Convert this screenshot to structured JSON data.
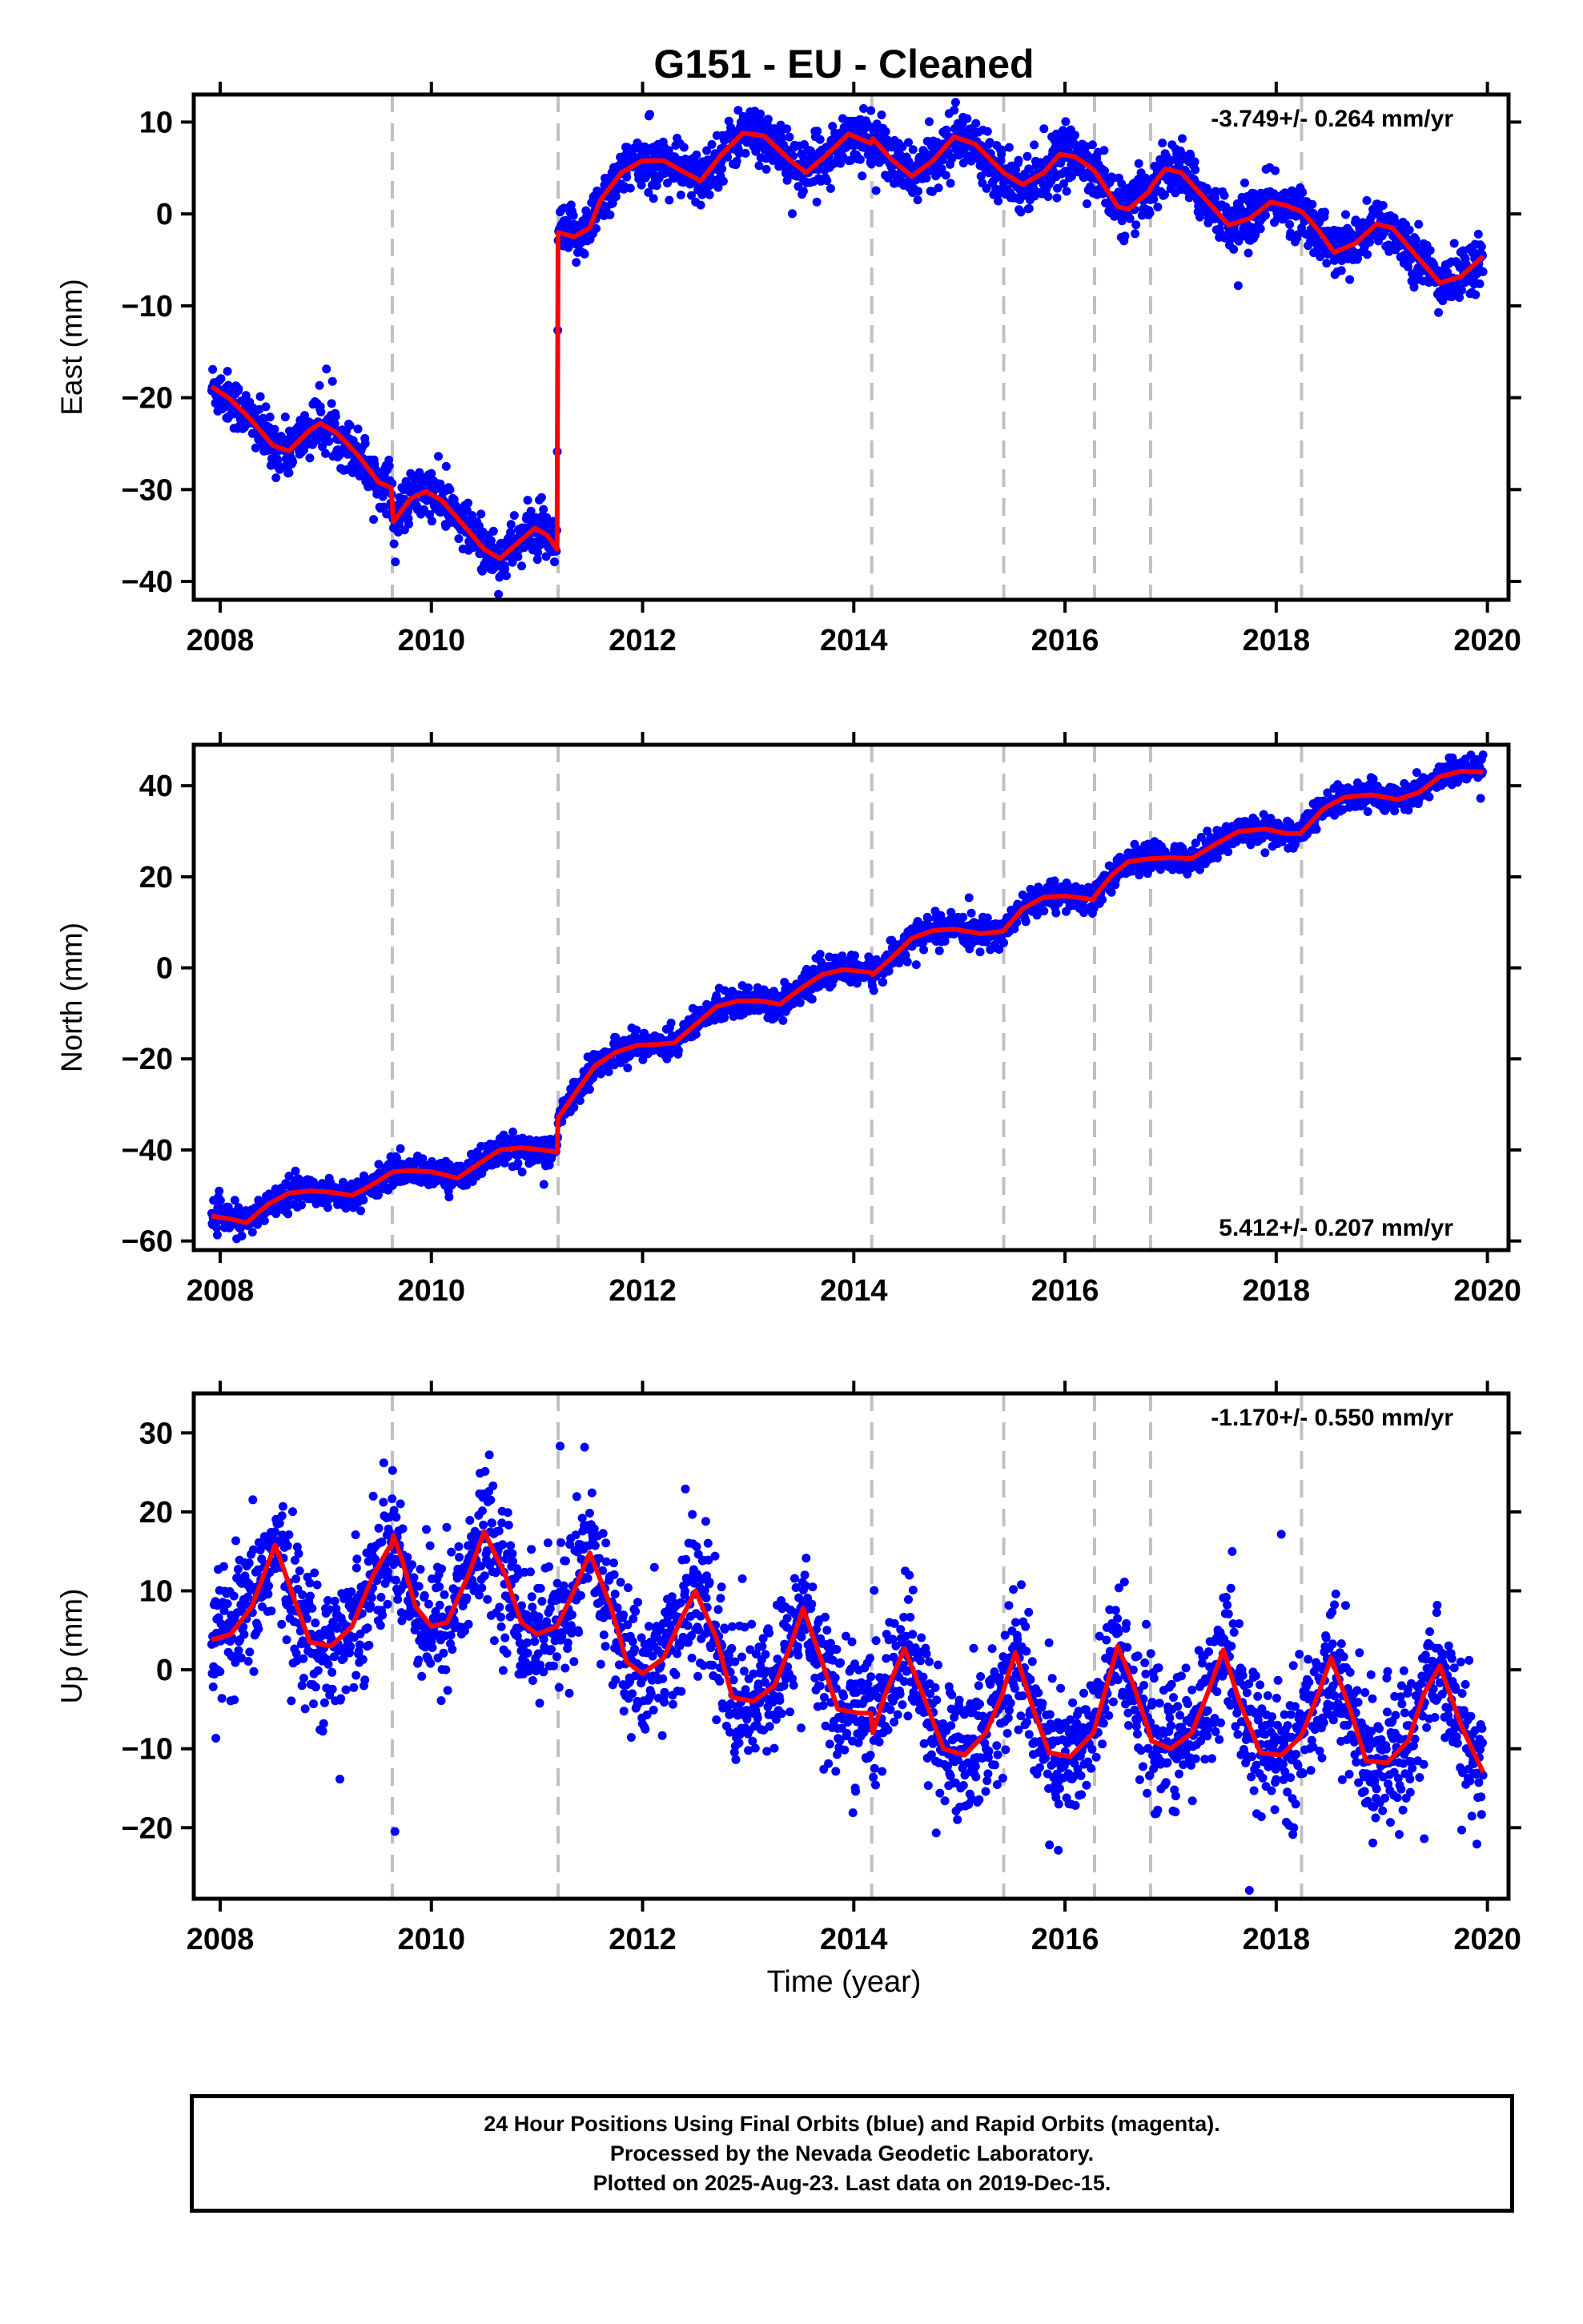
{
  "colors": {
    "observations": "#0000ff",
    "model": "#ff0000",
    "event_lines": "#c0c0c0",
    "frame": "#000000"
  },
  "chart_data": [
    {
      "type": "scatter",
      "id": "east",
      "title": "G151  - EU - Cleaned",
      "xlabel": "",
      "ylabel": "East (mm)",
      "xlim": [
        2007.75,
        2020.2
      ],
      "ylim": [
        -42,
        13
      ],
      "xticks": [
        2008,
        2010,
        2012,
        2014,
        2016,
        2018,
        2020
      ],
      "yticks": [
        -40,
        -30,
        -20,
        -10,
        0,
        10
      ],
      "annotation": "-3.749+/- 0.264 mm/yr",
      "annotation_position": "top-right",
      "grid": false,
      "event_lines": [
        2009.63,
        2011.2,
        2014.17,
        2015.42,
        2016.28,
        2016.81,
        2018.24
      ],
      "series": [
        {
          "kind": "points",
          "x_start": 2007.92,
          "x_end": 2019.96,
          "noise": 1.4
        },
        {
          "kind": "line",
          "points": [
            [
              2007.92,
              -18.8
            ],
            [
              2008.1,
              -20.2
            ],
            [
              2008.3,
              -22.5
            ],
            [
              2008.5,
              -25.2
            ],
            [
              2008.65,
              -25.8
            ],
            [
              2008.85,
              -23.5
            ],
            [
              2008.95,
              -22.8
            ],
            [
              2009.1,
              -23.8
            ],
            [
              2009.3,
              -26.2
            ],
            [
              2009.5,
              -29.2
            ],
            [
              2009.62,
              -29.8
            ],
            [
              2009.64,
              -33.5
            ],
            [
              2009.8,
              -31
            ],
            [
              2009.95,
              -30.2
            ],
            [
              2010.1,
              -31.2
            ],
            [
              2010.3,
              -33.8
            ],
            [
              2010.5,
              -36.5
            ],
            [
              2010.65,
              -37.5
            ],
            [
              2010.85,
              -35.5
            ],
            [
              2010.98,
              -34.2
            ],
            [
              2011.1,
              -35
            ],
            [
              2011.19,
              -36.5
            ],
            [
              2011.2,
              -2
            ],
            [
              2011.35,
              -2.5
            ],
            [
              2011.5,
              -1.5
            ],
            [
              2011.6,
              1.5
            ],
            [
              2011.8,
              4.5
            ],
            [
              2012.0,
              5.8
            ],
            [
              2012.2,
              5.8
            ],
            [
              2012.4,
              4.5
            ],
            [
              2012.55,
              3.6
            ],
            [
              2012.75,
              6.5
            ],
            [
              2012.95,
              8.8
            ],
            [
              2013.15,
              8.5
            ],
            [
              2013.4,
              5.8
            ],
            [
              2013.55,
              4.5
            ],
            [
              2013.75,
              6.5
            ],
            [
              2013.95,
              8.7
            ],
            [
              2014.16,
              7.7
            ],
            [
              2014.18,
              8.2
            ],
            [
              2014.35,
              6
            ],
            [
              2014.55,
              4.1
            ],
            [
              2014.75,
              5.8
            ],
            [
              2014.95,
              8.4
            ],
            [
              2015.15,
              7.6
            ],
            [
              2015.41,
              4.6
            ],
            [
              2015.43,
              4.4
            ],
            [
              2015.6,
              3.2
            ],
            [
              2015.8,
              4.5
            ],
            [
              2015.95,
              6.5
            ],
            [
              2016.1,
              6.2
            ],
            [
              2016.27,
              4.8
            ],
            [
              2016.29,
              4.5
            ],
            [
              2016.5,
              0.8
            ],
            [
              2016.6,
              0.5
            ],
            [
              2016.8,
              2.5
            ],
            [
              2016.82,
              3
            ],
            [
              2016.95,
              4.9
            ],
            [
              2017.1,
              4.5
            ],
            [
              2017.3,
              2
            ],
            [
              2017.55,
              -1.2
            ],
            [
              2017.75,
              -0.5
            ],
            [
              2017.95,
              1.3
            ],
            [
              2018.1,
              0.9
            ],
            [
              2018.23,
              0.3
            ],
            [
              2018.25,
              0.2
            ],
            [
              2018.4,
              -1.8
            ],
            [
              2018.55,
              -4.2
            ],
            [
              2018.75,
              -3.2
            ],
            [
              2018.95,
              -1.1
            ],
            [
              2019.1,
              -1.5
            ],
            [
              2019.3,
              -4.2
            ],
            [
              2019.55,
              -7.5
            ],
            [
              2019.75,
              -6.8
            ],
            [
              2019.96,
              -4.6
            ]
          ]
        }
      ]
    },
    {
      "type": "scatter",
      "id": "north",
      "title": "",
      "xlabel": "",
      "ylabel": "North (mm)",
      "xlim": [
        2007.75,
        2020.2
      ],
      "ylim": [
        -62,
        49
      ],
      "xticks": [
        2008,
        2010,
        2012,
        2014,
        2016,
        2018,
        2020
      ],
      "yticks": [
        -60,
        -40,
        -20,
        0,
        20,
        40
      ],
      "annotation": "5.412+/- 0.207 mm/yr",
      "annotation_position": "bottom-right",
      "grid": false,
      "event_lines": [
        2009.63,
        2011.2,
        2014.17,
        2015.42,
        2016.28,
        2016.81,
        2018.24
      ],
      "series": [
        {
          "kind": "points",
          "x_start": 2007.92,
          "x_end": 2019.96,
          "noise": 1.5
        },
        {
          "kind": "line",
          "points": [
            [
              2007.92,
              -54.5
            ],
            [
              2008.1,
              -55.2
            ],
            [
              2008.25,
              -56
            ],
            [
              2008.45,
              -52
            ],
            [
              2008.65,
              -49.5
            ],
            [
              2008.85,
              -49
            ],
            [
              2009.05,
              -49.3
            ],
            [
              2009.25,
              -50
            ],
            [
              2009.45,
              -47.5
            ],
            [
              2009.62,
              -45
            ],
            [
              2009.64,
              -44.8
            ],
            [
              2009.8,
              -44.5
            ],
            [
              2010.0,
              -44.8
            ],
            [
              2010.25,
              -46.2
            ],
            [
              2010.45,
              -43
            ],
            [
              2010.65,
              -40
            ],
            [
              2010.85,
              -39.5
            ],
            [
              2011.05,
              -40
            ],
            [
              2011.19,
              -40.5
            ],
            [
              2011.2,
              -33
            ],
            [
              2011.35,
              -28
            ],
            [
              2011.55,
              -21.5
            ],
            [
              2011.75,
              -18.5
            ],
            [
              2011.95,
              -17
            ],
            [
              2012.15,
              -16.8
            ],
            [
              2012.3,
              -16.5
            ],
            [
              2012.5,
              -12.5
            ],
            [
              2012.7,
              -8.5
            ],
            [
              2012.9,
              -7.3
            ],
            [
              2013.1,
              -7.2
            ],
            [
              2013.3,
              -8
            ],
            [
              2013.5,
              -4.5
            ],
            [
              2013.7,
              -1.5
            ],
            [
              2013.9,
              -0.4
            ],
            [
              2014.16,
              -1
            ],
            [
              2014.18,
              -1.5
            ],
            [
              2014.35,
              2
            ],
            [
              2014.55,
              6.5
            ],
            [
              2014.75,
              8.2
            ],
            [
              2014.95,
              8.5
            ],
            [
              2015.2,
              7.5
            ],
            [
              2015.41,
              8
            ],
            [
              2015.43,
              8.5
            ],
            [
              2015.6,
              13
            ],
            [
              2015.8,
              15.5
            ],
            [
              2016.0,
              15.8
            ],
            [
              2016.27,
              15
            ],
            [
              2016.29,
              16
            ],
            [
              2016.45,
              20.5
            ],
            [
              2016.6,
              23.3
            ],
            [
              2016.8,
              24
            ],
            [
              2016.82,
              24
            ],
            [
              2017.0,
              24.2
            ],
            [
              2017.2,
              24
            ],
            [
              2017.45,
              27.5
            ],
            [
              2017.65,
              30
            ],
            [
              2017.9,
              30.5
            ],
            [
              2018.1,
              29.5
            ],
            [
              2018.23,
              29.5
            ],
            [
              2018.25,
              30
            ],
            [
              2018.45,
              35
            ],
            [
              2018.65,
              37.5
            ],
            [
              2018.9,
              38
            ],
            [
              2019.15,
              37
            ],
            [
              2019.35,
              38.5
            ],
            [
              2019.55,
              42
            ],
            [
              2019.75,
              43.2
            ],
            [
              2019.96,
              43
            ]
          ]
        }
      ]
    },
    {
      "type": "scatter",
      "id": "up",
      "title": "",
      "xlabel": "Time (year)",
      "ylabel": "Up (mm)",
      "xlim": [
        2007.75,
        2020.2
      ],
      "ylim": [
        -29,
        35
      ],
      "xticks": [
        2008,
        2010,
        2012,
        2014,
        2016,
        2018,
        2020
      ],
      "yticks": [
        -20,
        -10,
        0,
        10,
        20,
        30
      ],
      "annotation": "-1.170+/- 0.550 mm/yr",
      "annotation_position": "top-right",
      "grid": false,
      "event_lines": [
        2009.63,
        2011.2,
        2014.17,
        2015.42,
        2016.28,
        2016.81,
        2018.24
      ],
      "series": [
        {
          "kind": "points",
          "x_start": 2007.92,
          "x_end": 2019.96,
          "noise": 4.2
        },
        {
          "kind": "line",
          "points": [
            [
              2007.92,
              3.8
            ],
            [
              2008.1,
              4.5
            ],
            [
              2008.3,
              8
            ],
            [
              2008.52,
              15.8
            ],
            [
              2008.7,
              9
            ],
            [
              2008.85,
              3.5
            ],
            [
              2009.05,
              3
            ],
            [
              2009.25,
              5.5
            ],
            [
              2009.45,
              12
            ],
            [
              2009.6,
              15.5
            ],
            [
              2009.62,
              15.5
            ],
            [
              2009.64,
              17
            ],
            [
              2009.72,
              14
            ],
            [
              2009.85,
              8
            ],
            [
              2010.0,
              5.5
            ],
            [
              2010.15,
              6
            ],
            [
              2010.35,
              12
            ],
            [
              2010.5,
              17.5
            ],
            [
              2010.7,
              12
            ],
            [
              2010.85,
              6
            ],
            [
              2011.0,
              4.5
            ],
            [
              2011.19,
              5.5
            ],
            [
              2011.2,
              5.8
            ],
            [
              2011.35,
              10
            ],
            [
              2011.5,
              14.8
            ],
            [
              2011.7,
              8
            ],
            [
              2011.85,
              1
            ],
            [
              2012.0,
              -0.5
            ],
            [
              2012.2,
              1.5
            ],
            [
              2012.35,
              6
            ],
            [
              2012.5,
              10
            ],
            [
              2012.7,
              4
            ],
            [
              2012.85,
              -3.5
            ],
            [
              2013.05,
              -4
            ],
            [
              2013.25,
              -2
            ],
            [
              2013.4,
              3
            ],
            [
              2013.52,
              7.8
            ],
            [
              2013.7,
              1
            ],
            [
              2013.85,
              -5
            ],
            [
              2014.05,
              -5.5
            ],
            [
              2014.16,
              -5.5
            ],
            [
              2014.18,
              -8
            ],
            [
              2014.3,
              -3
            ],
            [
              2014.48,
              2.7
            ],
            [
              2014.65,
              -3
            ],
            [
              2014.85,
              -10
            ],
            [
              2015.05,
              -10.8
            ],
            [
              2015.25,
              -8
            ],
            [
              2015.41,
              -3
            ],
            [
              2015.43,
              -2
            ],
            [
              2015.53,
              2.2
            ],
            [
              2015.7,
              -5
            ],
            [
              2015.85,
              -10.5
            ],
            [
              2016.05,
              -11
            ],
            [
              2016.27,
              -8
            ],
            [
              2016.29,
              -7
            ],
            [
              2016.5,
              3
            ],
            [
              2016.65,
              -2
            ],
            [
              2016.8,
              -8
            ],
            [
              2016.82,
              -9
            ],
            [
              2017.0,
              -10
            ],
            [
              2017.2,
              -8
            ],
            [
              2017.35,
              -3
            ],
            [
              2017.5,
              2.5
            ],
            [
              2017.65,
              -4
            ],
            [
              2017.85,
              -10.5
            ],
            [
              2018.05,
              -10.8
            ],
            [
              2018.23,
              -8.5
            ],
            [
              2018.25,
              -8
            ],
            [
              2018.4,
              -3
            ],
            [
              2018.52,
              1.5
            ],
            [
              2018.7,
              -5
            ],
            [
              2018.85,
              -11.5
            ],
            [
              2019.05,
              -11.8
            ],
            [
              2019.25,
              -9
            ],
            [
              2019.4,
              -3
            ],
            [
              2019.55,
              0.5
            ],
            [
              2019.75,
              -7
            ],
            [
              2019.96,
              -13
            ]
          ]
        }
      ]
    }
  ],
  "footer": {
    "line1": "24 Hour Positions Using Final Orbits (blue) and Rapid Orbits (magenta).",
    "line2": "Processed by the Nevada Geodetic Laboratory.",
    "line3": "Plotted on 2025-Aug-23. Last data on 2019-Dec-15."
  }
}
